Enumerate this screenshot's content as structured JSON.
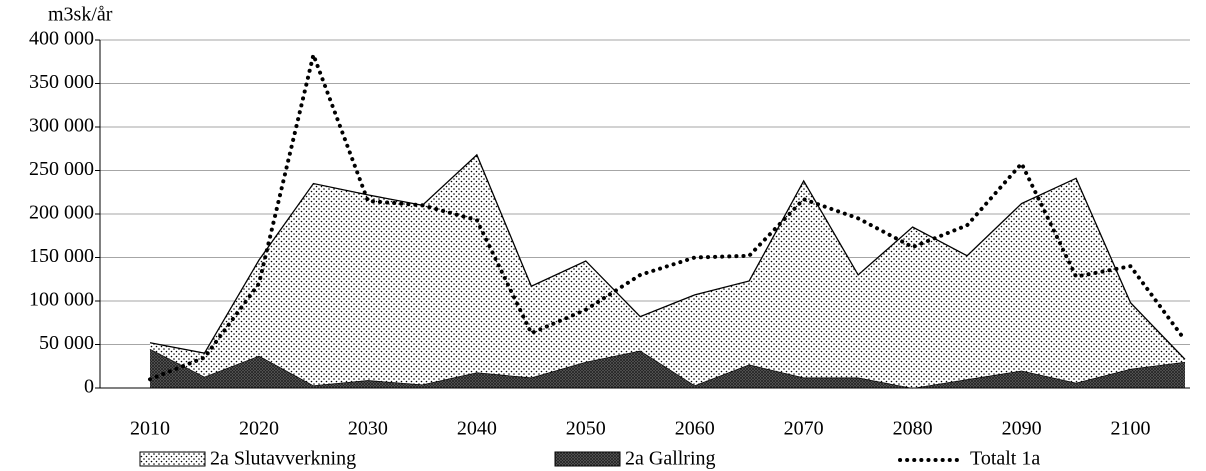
{
  "chart_data": {
    "type": "area",
    "stacked": true,
    "y_label": "m3sk/år",
    "x": [
      2010,
      2015,
      2020,
      2025,
      2030,
      2035,
      2040,
      2045,
      2050,
      2055,
      2060,
      2065,
      2070,
      2075,
      2080,
      2085,
      2090,
      2095,
      2100,
      2105
    ],
    "xlim": [
      2010,
      2105
    ],
    "xticks": [
      2010,
      2020,
      2030,
      2040,
      2050,
      2060,
      2070,
      2080,
      2090,
      2100
    ],
    "ylim": [
      0,
      400000
    ],
    "yticks": [
      {
        "value": 0,
        "label": "0"
      },
      {
        "value": 50000,
        "label": "50 000"
      },
      {
        "value": 100000,
        "label": "100 000"
      },
      {
        "value": 150000,
        "label": "150 000"
      },
      {
        "value": 200000,
        "label": "200 000"
      },
      {
        "value": 250000,
        "label": "250 000"
      },
      {
        "value": 300000,
        "label": "300 000"
      },
      {
        "value": 350000,
        "label": "350 000"
      },
      {
        "value": 400000,
        "label": "400 000"
      }
    ],
    "grid": true,
    "legend": "bottom",
    "series": [
      {
        "name": "2a Gallring",
        "type": "area",
        "color": "#000000",
        "values": [
          45000,
          13000,
          37000,
          3000,
          9000,
          4000,
          18000,
          12000,
          30000,
          43000,
          3000,
          27000,
          12000,
          12000,
          0,
          10000,
          20000,
          6000,
          22000,
          30000
        ]
      },
      {
        "name": "2a Slutavverkning",
        "type": "area",
        "color": "#000000",
        "values": [
          7000,
          27000,
          110000,
          232000,
          213000,
          206000,
          250000,
          105000,
          116000,
          39000,
          104000,
          96000,
          226000,
          118000,
          185000,
          142000,
          192000,
          235000,
          76000,
          3000
        ]
      },
      {
        "name": "Totalt 1a",
        "type": "line",
        "color": "#000000",
        "values": [
          10000,
          35000,
          120000,
          383000,
          215000,
          210000,
          193000,
          63000,
          90000,
          130000,
          150000,
          152000,
          217000,
          195000,
          162000,
          187000,
          258000,
          128000,
          140000,
          55000
        ]
      }
    ]
  }
}
